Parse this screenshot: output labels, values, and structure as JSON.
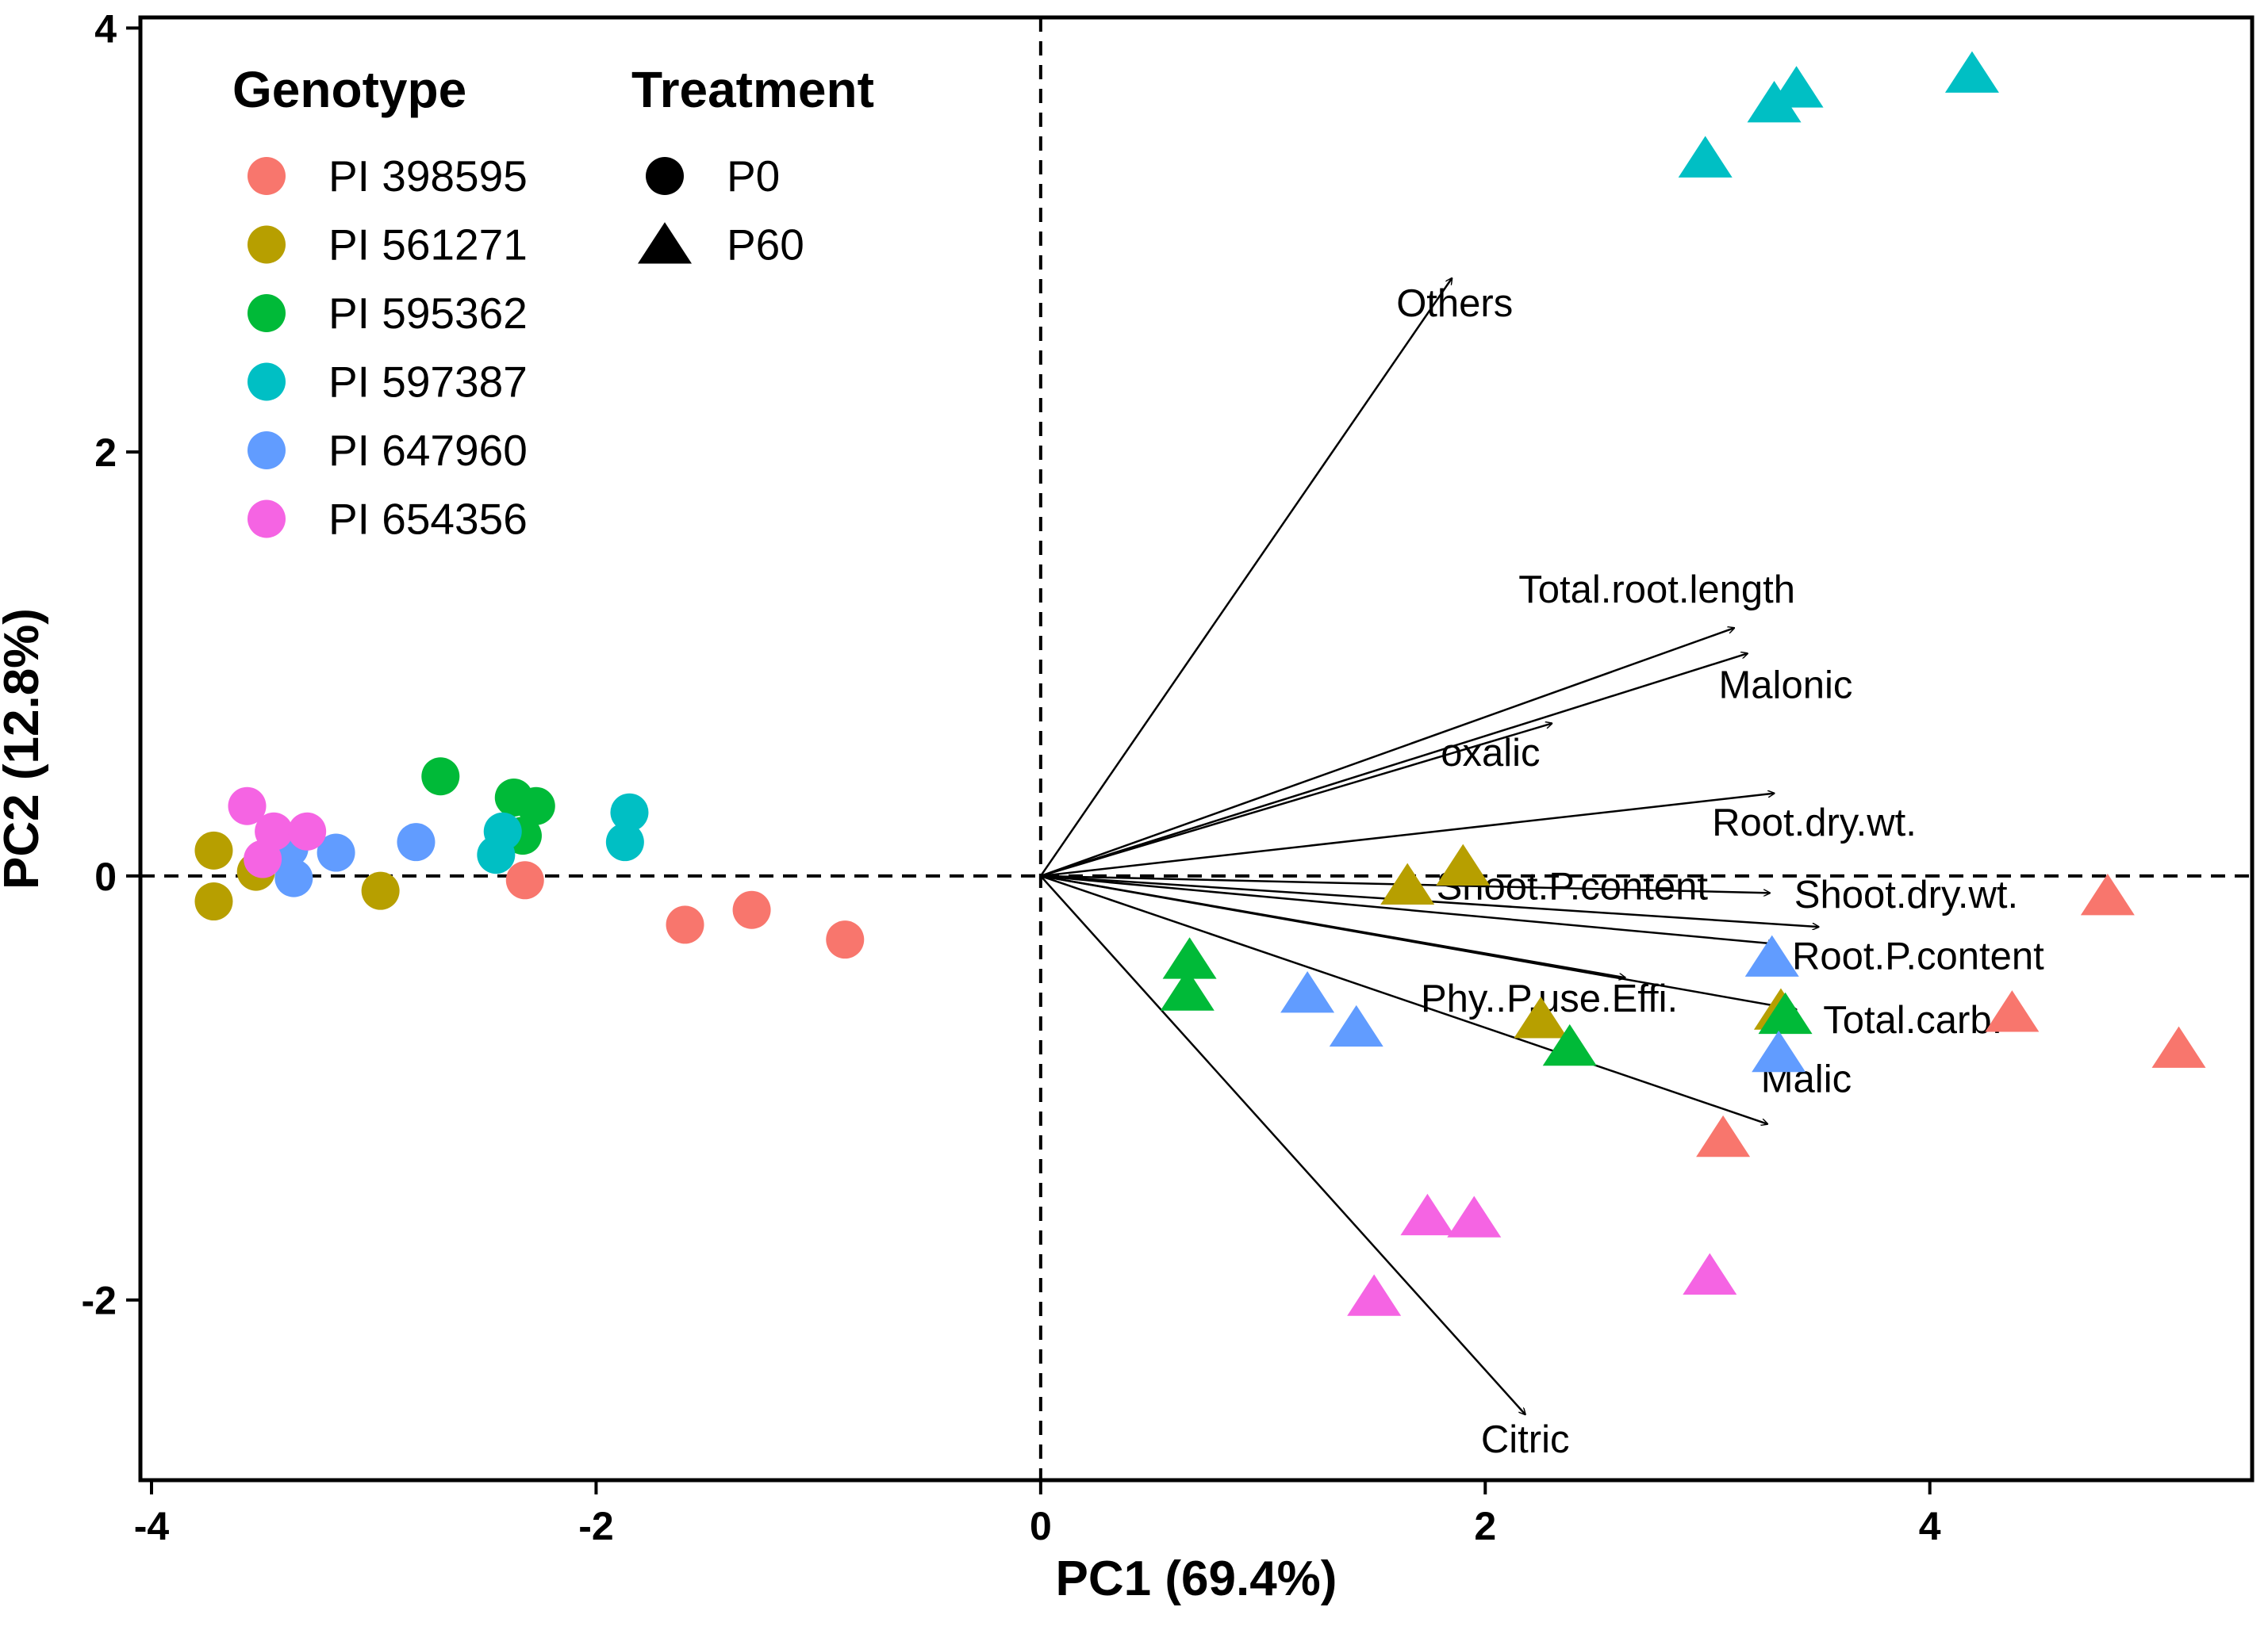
{
  "chart_data": {
    "type": "scatter",
    "xlabel": "PC1 (69.4%)",
    "ylabel": "PC2 (12.8%)",
    "xlim": [
      -4.05,
      5.45
    ],
    "ylim": [
      -2.85,
      4.05
    ],
    "x_ticks": [
      -4,
      -2,
      0,
      2,
      4
    ],
    "y_ticks": [
      -2,
      0,
      2,
      4
    ],
    "x_tick_labels": [
      "-4",
      "-2",
      "0",
      "2",
      "4"
    ],
    "y_tick_labels": [
      "-2",
      "0",
      "2",
      "4"
    ],
    "grid": false,
    "reference_lines": {
      "x": 0,
      "y": 0,
      "style": "dashed"
    },
    "legend": {
      "position": "top-left",
      "genotype_title": "Genotype",
      "treatment_title": "Treatment",
      "genotypes": [
        {
          "name": "PI 398595",
          "color": "#F8766D"
        },
        {
          "name": "PI 561271",
          "color": "#B79F00"
        },
        {
          "name": "PI 595362",
          "color": "#00BA38"
        },
        {
          "name": "PI 597387",
          "color": "#00BFC4"
        },
        {
          "name": "PI 647960",
          "color": "#619CFF"
        },
        {
          "name": "PI 654356",
          "color": "#F564E3"
        }
      ],
      "treatments": [
        {
          "name": "P0",
          "shape": "circle"
        },
        {
          "name": "P60",
          "shape": "triangle"
        }
      ]
    },
    "points": [
      {
        "g": 0,
        "t": "P0",
        "x": -2.32,
        "y": -0.02
      },
      {
        "g": 0,
        "t": "P0",
        "x": -1.6,
        "y": -0.23
      },
      {
        "g": 0,
        "t": "P0",
        "x": -1.3,
        "y": -0.16
      },
      {
        "g": 0,
        "t": "P0",
        "x": -0.88,
        "y": -0.3
      },
      {
        "g": 1,
        "t": "P0",
        "x": -3.72,
        "y": 0.12
      },
      {
        "g": 1,
        "t": "P0",
        "x": -3.72,
        "y": -0.12
      },
      {
        "g": 1,
        "t": "P0",
        "x": -3.53,
        "y": 0.02
      },
      {
        "g": 1,
        "t": "P0",
        "x": -2.97,
        "y": -0.07
      },
      {
        "g": 2,
        "t": "P0",
        "x": -2.7,
        "y": 0.47
      },
      {
        "g": 2,
        "t": "P0",
        "x": -2.37,
        "y": 0.37
      },
      {
        "g": 2,
        "t": "P0",
        "x": -2.27,
        "y": 0.33
      },
      {
        "g": 2,
        "t": "P0",
        "x": -2.33,
        "y": 0.19
      },
      {
        "g": 3,
        "t": "P0",
        "x": -2.42,
        "y": 0.21
      },
      {
        "g": 3,
        "t": "P0",
        "x": -2.45,
        "y": 0.1
      },
      {
        "g": 3,
        "t": "P0",
        "x": -1.85,
        "y": 0.3
      },
      {
        "g": 3,
        "t": "P0",
        "x": -1.87,
        "y": 0.16
      },
      {
        "g": 4,
        "t": "P0",
        "x": -3.38,
        "y": 0.13
      },
      {
        "g": 4,
        "t": "P0",
        "x": -3.36,
        "y": -0.01
      },
      {
        "g": 4,
        "t": "P0",
        "x": -3.17,
        "y": 0.11
      },
      {
        "g": 4,
        "t": "P0",
        "x": -2.81,
        "y": 0.16
      },
      {
        "g": 5,
        "t": "P0",
        "x": -3.57,
        "y": 0.33
      },
      {
        "g": 5,
        "t": "P0",
        "x": -3.45,
        "y": 0.21
      },
      {
        "g": 5,
        "t": "P0",
        "x": -3.3,
        "y": 0.21
      },
      {
        "g": 5,
        "t": "P0",
        "x": -3.5,
        "y": 0.08
      },
      {
        "g": 0,
        "t": "P60",
        "x": 3.07,
        "y": -1.25
      },
      {
        "g": 0,
        "t": "P60",
        "x": 4.37,
        "y": -0.66
      },
      {
        "g": 0,
        "t": "P60",
        "x": 4.8,
        "y": -0.11
      },
      {
        "g": 0,
        "t": "P60",
        "x": 5.12,
        "y": -0.83
      },
      {
        "g": 1,
        "t": "P60",
        "x": 1.65,
        "y": -0.06
      },
      {
        "g": 1,
        "t": "P60",
        "x": 1.9,
        "y": 0.03
      },
      {
        "g": 1,
        "t": "P60",
        "x": 2.25,
        "y": -0.69
      },
      {
        "g": 1,
        "t": "P60",
        "x": 3.33,
        "y": -0.65
      },
      {
        "g": 2,
        "t": "P60",
        "x": 0.67,
        "y": -0.41
      },
      {
        "g": 2,
        "t": "P60",
        "x": 0.66,
        "y": -0.56
      },
      {
        "g": 2,
        "t": "P60",
        "x": 2.38,
        "y": -0.82
      },
      {
        "g": 2,
        "t": "P60",
        "x": 3.35,
        "y": -0.67
      },
      {
        "g": 3,
        "t": "P60",
        "x": 2.99,
        "y": 3.37
      },
      {
        "g": 3,
        "t": "P60",
        "x": 3.3,
        "y": 3.63
      },
      {
        "g": 3,
        "t": "P60",
        "x": 3.4,
        "y": 3.7
      },
      {
        "g": 3,
        "t": "P60",
        "x": 4.19,
        "y": 3.77
      },
      {
        "g": 4,
        "t": "P60",
        "x": 1.2,
        "y": -0.57
      },
      {
        "g": 4,
        "t": "P60",
        "x": 1.42,
        "y": -0.73
      },
      {
        "g": 4,
        "t": "P60",
        "x": 3.29,
        "y": -0.4
      },
      {
        "g": 4,
        "t": "P60",
        "x": 3.32,
        "y": -0.85
      },
      {
        "g": 5,
        "t": "P60",
        "x": 1.74,
        "y": -1.62
      },
      {
        "g": 5,
        "t": "P60",
        "x": 1.95,
        "y": -1.63
      },
      {
        "g": 5,
        "t": "P60",
        "x": 1.5,
        "y": -2.0
      },
      {
        "g": 5,
        "t": "P60",
        "x": 3.01,
        "y": -1.9
      }
    ],
    "loadings": [
      {
        "name": "Others",
        "x": 1.85,
        "y": 2.82,
        "lx": 1.6,
        "ly": 2.64,
        "anchor": "start"
      },
      {
        "name": "Total.root.length",
        "x": 3.12,
        "y": 1.17,
        "lx": 2.15,
        "ly": 1.29,
        "anchor": "start"
      },
      {
        "name": "Malonic",
        "x": 3.18,
        "y": 1.05,
        "lx": 3.05,
        "ly": 0.84,
        "anchor": "start"
      },
      {
        "name": "oxalic",
        "x": 2.3,
        "y": 0.72,
        "lx": 1.8,
        "ly": 0.52,
        "anchor": "start"
      },
      {
        "name": "Root.dry.wt.",
        "x": 3.3,
        "y": 0.39,
        "lx": 3.02,
        "ly": 0.19,
        "anchor": "start"
      },
      {
        "name": "Shoot.P.content",
        "x": 3.28,
        "y": -0.08,
        "lx": 1.78,
        "ly": -0.11,
        "anchor": "start"
      },
      {
        "name": "Shoot.dry.wt.",
        "x": 3.5,
        "y": -0.24,
        "lx": 3.39,
        "ly": -0.15,
        "anchor": "start"
      },
      {
        "name": "Root.P.content",
        "x": 3.3,
        "y": -0.32,
        "lx": 3.38,
        "ly": -0.44,
        "anchor": "start"
      },
      {
        "name": "Phy..P.use.Effi.",
        "x": 2.63,
        "y": -0.48,
        "lx": 1.71,
        "ly": -0.64,
        "anchor": "start"
      },
      {
        "name": "Total.carb.",
        "x": 3.4,
        "y": -0.63,
        "lx": 3.52,
        "ly": -0.74,
        "anchor": "start"
      },
      {
        "name": "Malic",
        "x": 3.27,
        "y": -1.17,
        "lx": 3.24,
        "ly": -1.02,
        "anchor": "start"
      },
      {
        "name": "Citric",
        "x": 2.18,
        "y": -2.54,
        "lx": 2.18,
        "ly": -2.72,
        "anchor": "middle"
      }
    ]
  }
}
